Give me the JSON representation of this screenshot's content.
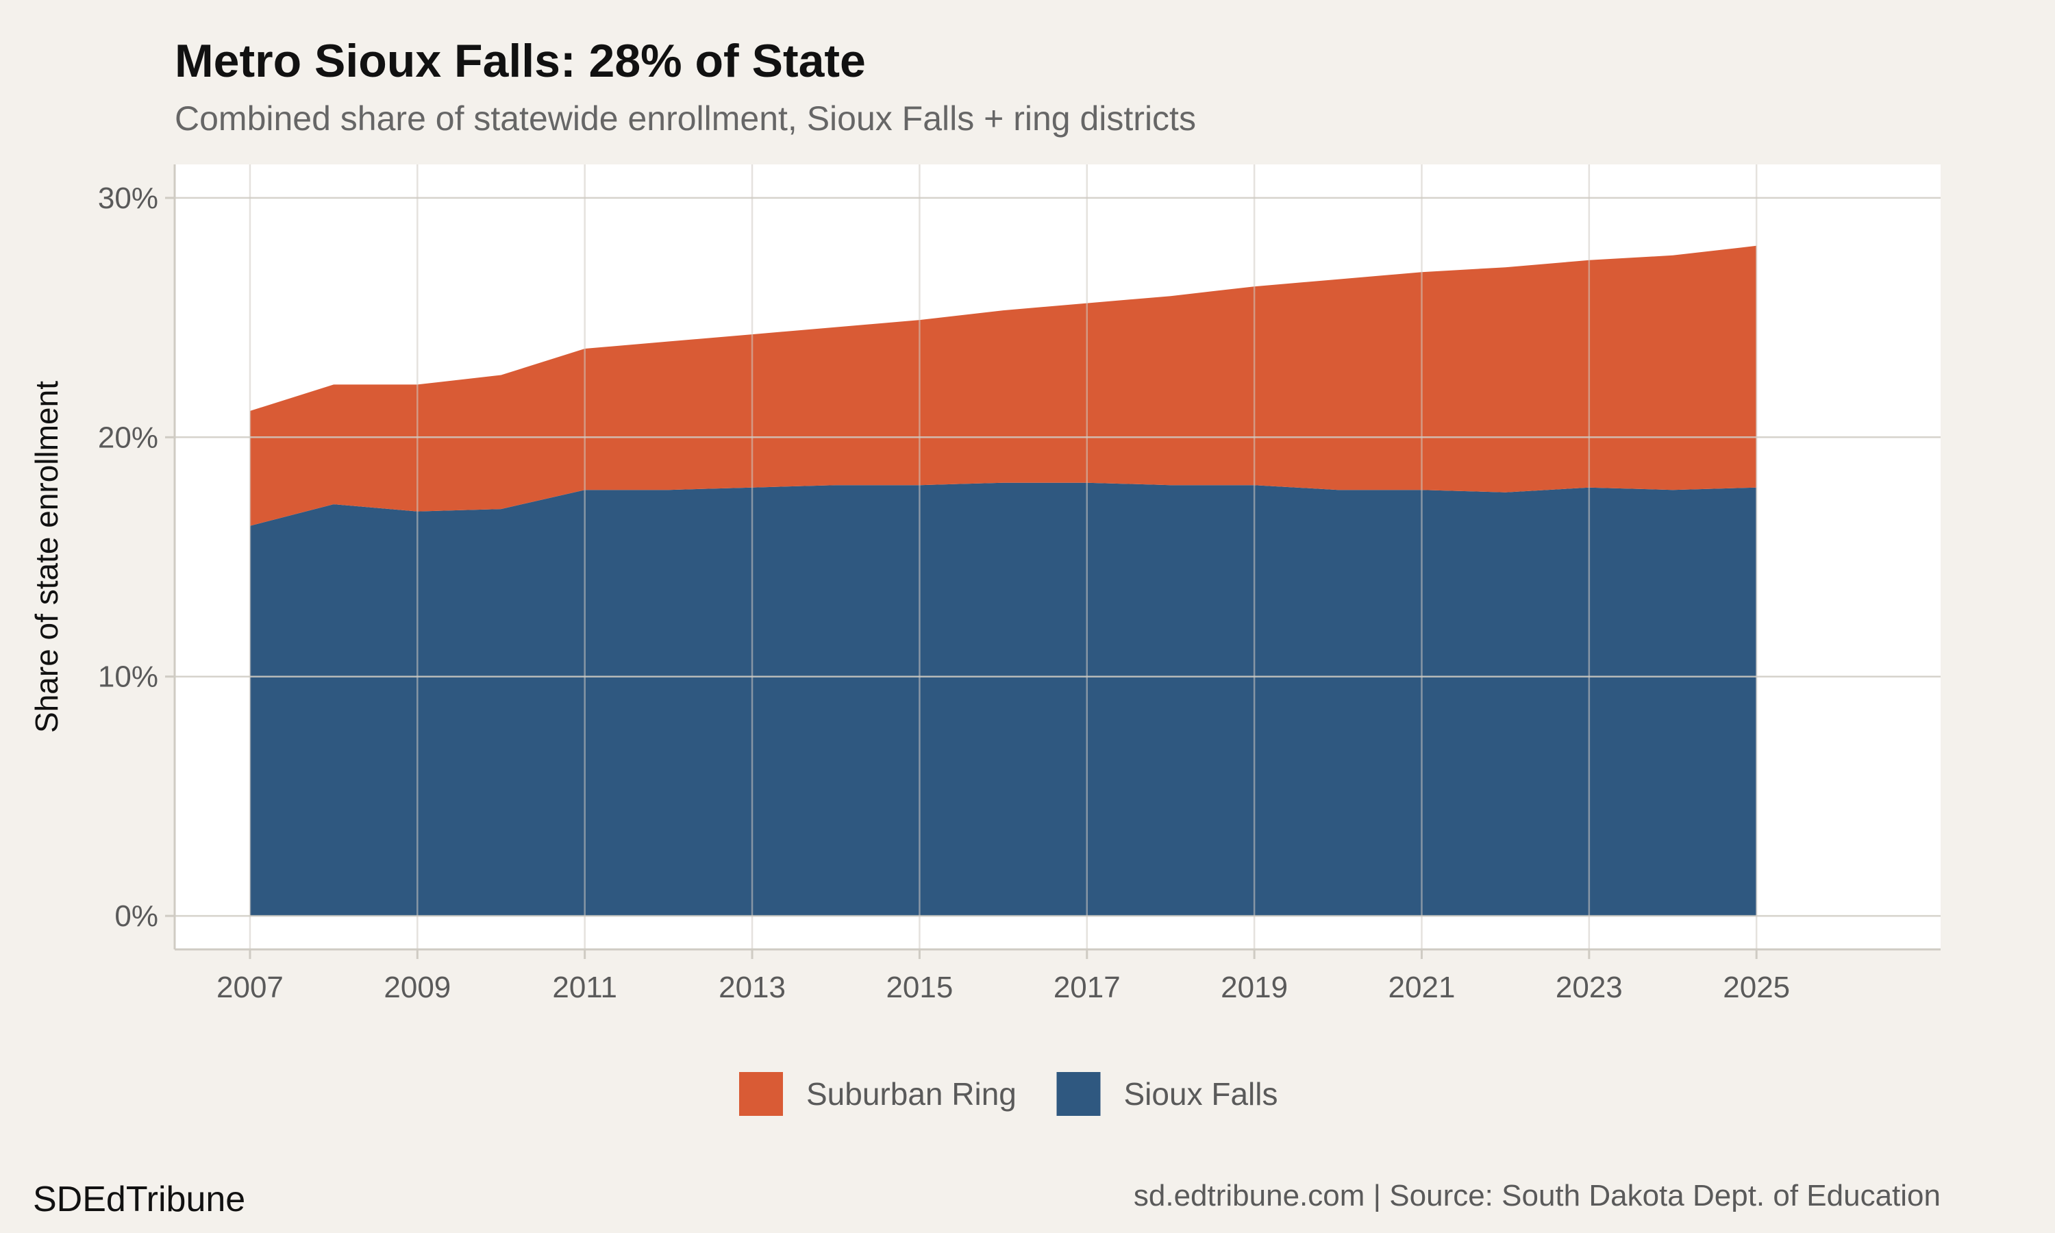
{
  "title": "Metro Sioux Falls: 28% of State",
  "subtitle": "Combined share of statewide enrollment, Sioux Falls + ring districts",
  "brand": "SDEdTribune",
  "caption": "sd.edtribune.com | Source: South Dakota Dept. of Education",
  "colors": {
    "background": "#f4f1ec",
    "panel": "#ffffff",
    "grid": "#cfcbc3",
    "suburban_ring": "#d95b35",
    "sioux_falls": "#2f5880"
  },
  "chart_data": {
    "type": "area",
    "stacked": true,
    "title": "Metro Sioux Falls: 28% of State",
    "subtitle": "Combined share of statewide enrollment, Sioux Falls + ring districts",
    "xlabel": "",
    "ylabel": "Share of state enrollment",
    "x": [
      2007,
      2008,
      2009,
      2010,
      2011,
      2012,
      2013,
      2014,
      2015,
      2016,
      2017,
      2018,
      2019,
      2020,
      2021,
      2022,
      2023,
      2024,
      2025
    ],
    "xlim": [
      2006.1,
      2027.2
    ],
    "ylim": [
      -1.4,
      31.4
    ],
    "x_ticks": [
      2007,
      2009,
      2011,
      2013,
      2015,
      2017,
      2019,
      2021,
      2023,
      2025
    ],
    "y_ticks": [
      0,
      10,
      20,
      30
    ],
    "y_tick_labels": [
      "0%",
      "10%",
      "20%",
      "30%"
    ],
    "grid": true,
    "legend_position": "bottom",
    "series": [
      {
        "name": "Sioux Falls",
        "color": "#2f5880",
        "values": [
          16.3,
          17.2,
          16.9,
          17.0,
          17.8,
          17.8,
          17.9,
          18.0,
          18.0,
          18.1,
          18.1,
          18.0,
          18.0,
          17.8,
          17.8,
          17.7,
          17.9,
          17.8,
          17.9
        ]
      },
      {
        "name": "Suburban Ring",
        "color": "#d95b35",
        "values": [
          4.8,
          5.0,
          5.3,
          5.6,
          5.9,
          6.2,
          6.4,
          6.6,
          6.9,
          7.2,
          7.5,
          7.9,
          8.3,
          8.8,
          9.1,
          9.4,
          9.5,
          9.8,
          10.1
        ]
      }
    ],
    "legend": [
      {
        "name": "Suburban Ring",
        "color": "#d95b35"
      },
      {
        "name": "Sioux Falls",
        "color": "#2f5880"
      }
    ]
  }
}
